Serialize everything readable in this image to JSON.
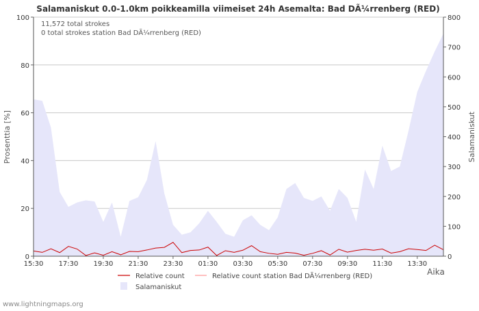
{
  "chart_data": {
    "type": "area",
    "title": "Salamaniskut 0.0-1.0km poikkeamilla viimeiset 24h Asemalta: Bad DÃ¼rrenberg (RED)",
    "ylabel_left": "Prosenttia   [%]",
    "ylabel_right": "Salamaniskut",
    "xlabel": "Aika",
    "y_left_range": [
      0,
      100
    ],
    "y_left_ticks": [
      0,
      20,
      40,
      60,
      80,
      100
    ],
    "y_right_range": [
      0,
      800
    ],
    "y_right_ticks": [
      0,
      100,
      200,
      300,
      400,
      500,
      600,
      700,
      800
    ],
    "x_ticks": [
      "15:30",
      "17:30",
      "19:30",
      "21:30",
      "23:30",
      "01:30",
      "03:30",
      "05:30",
      "07:30",
      "09:30",
      "11:30",
      "13:30"
    ],
    "annotations": [
      "11,572 total strokes",
      "0 total strokes station Bad DÃ¼rrenberg (RED)"
    ],
    "x_hours": [
      0,
      0.5,
      1,
      1.5,
      2,
      2.5,
      3,
      3.5,
      4,
      4.5,
      5,
      5.5,
      6,
      6.5,
      7,
      7.5,
      8,
      8.5,
      9,
      9.5,
      10,
      10.5,
      11,
      11.5,
      12,
      12.5,
      13,
      13.5,
      14,
      14.5,
      15,
      15.5,
      16,
      16.5,
      17,
      17.5,
      18,
      18.5,
      19,
      19.5,
      20,
      20.5,
      21,
      21.5,
      22,
      22.5,
      23,
      23.5
    ],
    "series": [
      {
        "name": "Salamaniskut",
        "axis": "right",
        "color": "#e6e6fa",
        "values": [
          525,
          520,
          430,
          215,
          165,
          180,
          187,
          183,
          115,
          180,
          65,
          185,
          197,
          255,
          385,
          210,
          105,
          72,
          80,
          110,
          152,
          115,
          75,
          65,
          120,
          137,
          105,
          87,
          130,
          225,
          245,
          195,
          185,
          200,
          152,
          225,
          195,
          115,
          290,
          225,
          370,
          285,
          300,
          420,
          550,
          620,
          685,
          745
        ]
      },
      {
        "name": "Relative count",
        "axis": "left",
        "color": "#cc0000",
        "values": [
          2.2,
          1.6,
          3.1,
          1.5,
          4.1,
          3.0,
          0.3,
          1.4,
          0.4,
          1.9,
          0.6,
          2.0,
          1.9,
          2.6,
          3.4,
          3.7,
          5.8,
          1.5,
          2.4,
          2.6,
          3.8,
          0.3,
          2.3,
          1.6,
          2.5,
          4.4,
          1.9,
          1.2,
          0.8,
          1.6,
          1.3,
          0.4,
          1.2,
          2.3,
          0.5,
          2.9,
          1.7,
          2.4,
          2.9,
          2.5,
          3.0,
          1.3,
          1.9,
          3.1,
          2.8,
          2.4,
          4.6,
          2.7
        ]
      },
      {
        "name": "Relative count station Bad DÃ¼rrenberg (RED)",
        "axis": "left",
        "color": "#ff9999",
        "values": []
      }
    ]
  },
  "footer": {
    "credit": "www.lightningmaps.org"
  }
}
